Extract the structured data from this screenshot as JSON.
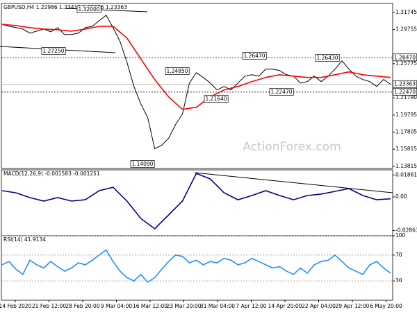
{
  "chart_data": [
    {
      "type": "line",
      "title": "GBPUSD,H4 1.22986 1.23412 1.22986 1.23363",
      "watermark": "ActionForex.com",
      "series": [
        {
          "color": "#000000",
          "values": [
            1.3037,
            1.3013,
            1.2997,
            1.2981,
            1.2933,
            1.2957,
            1.2981,
            1.2949,
            1.2997,
            1.2917,
            1.2917,
            1.2933,
            1.2997,
            1.3013,
            1.3078,
            1.3142,
            1.2997,
            1.2836,
            1.2594,
            1.2312,
            1.211,
            1.1949,
            1.1587,
            1.1627,
            1.1708,
            1.1869,
            1.199,
            1.2352,
            1.2473,
            1.2417,
            1.2352,
            1.2272,
            1.2312,
            1.2272,
            1.2352,
            1.2433,
            1.2449,
            1.2433,
            1.2514,
            1.2514,
            1.2498,
            1.2449,
            1.2433,
            1.2352,
            1.2369,
            1.2433,
            1.2369,
            1.2433,
            1.2514,
            1.261,
            1.2514,
            1.2433,
            1.2393,
            1.2369,
            1.2312,
            1.2393,
            1.2337
          ]
        },
        {
          "color": "#ff0000",
          "values": [
            1.3037,
            1.3021,
            1.2997,
            1.2981,
            1.2973,
            1.2957,
            1.2981,
            1.3013,
            1.3013,
            1.2876,
            1.2634,
            1.2393,
            1.2191,
            1.2046,
            1.207,
            1.2191,
            1.2272,
            1.2312,
            1.2369,
            1.2417,
            1.2449,
            1.2433,
            1.2417,
            1.2417,
            1.2449,
            1.2482,
            1.2449,
            1.2433,
            1.2417
          ]
        }
      ],
      "ylim": [
        1.1357,
        1.3279
      ],
      "yticks": [
        1.31745,
        1.29755,
        1.25775,
        {
          "value": 1.2179,
          "label": "1.21790"
        },
        1.19795,
        {
          "value": 1.17805,
          "label": "1.17805"
        },
        1.15815,
        1.13815
      ],
      "levels": [
        {
          "value": 1.2647,
          "label": "1.26470"
        },
        {
          "value": 1.2247,
          "label": "1.22470"
        }
      ],
      "current_price": 1.23363,
      "annotations": [
        "1.32000",
        "1.27250",
        "1.24850",
        "1.26470",
        "1.26430",
        "1.21640",
        "1.22470",
        "1.14090"
      ]
    },
    {
      "type": "line",
      "title": "MACD(12,26,9) -0.001583 -0.001251",
      "series": [
        {
          "color": "#00008b",
          "values": [
            0.0053,
            0.0035,
            -0.0006,
            -0.0035,
            -0.0006,
            -0.0035,
            -0.0024,
            0.0053,
            0.0082,
            -0.0035,
            -0.0183,
            -0.0271,
            -0.0153,
            -0.0035,
            0.02,
            0.0153,
            0.0035,
            -0.0024,
            0.0012,
            0.0053,
            0.0012,
            -0.0024,
            0.0012,
            0.0024,
            0.0047,
            0.0071,
            0.0012,
            -0.0024,
            -0.0016
          ]
        }
      ],
      "ylim": [
        -0.033,
        0.023
      ],
      "yticks": [
        0.018615,
        {
          "value": 0,
          "label": "0.00"
        },
        -0.028631
      ]
    },
    {
      "type": "line",
      "title": "RSI(14) 41.9134",
      "series": [
        {
          "color": "#1e90ff",
          "values": [
            55,
            60,
            48,
            40,
            62,
            55,
            50,
            60,
            52,
            45,
            50,
            58,
            55,
            62,
            70,
            78,
            60,
            45,
            35,
            30,
            40,
            28,
            35,
            48,
            60,
            70,
            68,
            58,
            62,
            55,
            60,
            58,
            65,
            62,
            55,
            58,
            65,
            60,
            55,
            50,
            52,
            45,
            40,
            50,
            42,
            55,
            60,
            62,
            70,
            60,
            50,
            45,
            40,
            55,
            60,
            50,
            42
          ]
        }
      ],
      "ylim": [
        0,
        100
      ],
      "yticks": [
        100,
        70,
        30
      ],
      "grid": true,
      "x_tick_labels": [
        "14 Feb 2020",
        "21 Feb 12:00",
        "28 Feb 20:00",
        "9 Mar 04:00",
        "16 Mar 12:00",
        "23 Mar 20:00",
        "31 Mar 04:00",
        "7 Apr 12:00",
        "14 Apr 20:00",
        "22 Apr 04:00",
        "29 Apr 12:00",
        "6 May 20:00"
      ]
    }
  ]
}
